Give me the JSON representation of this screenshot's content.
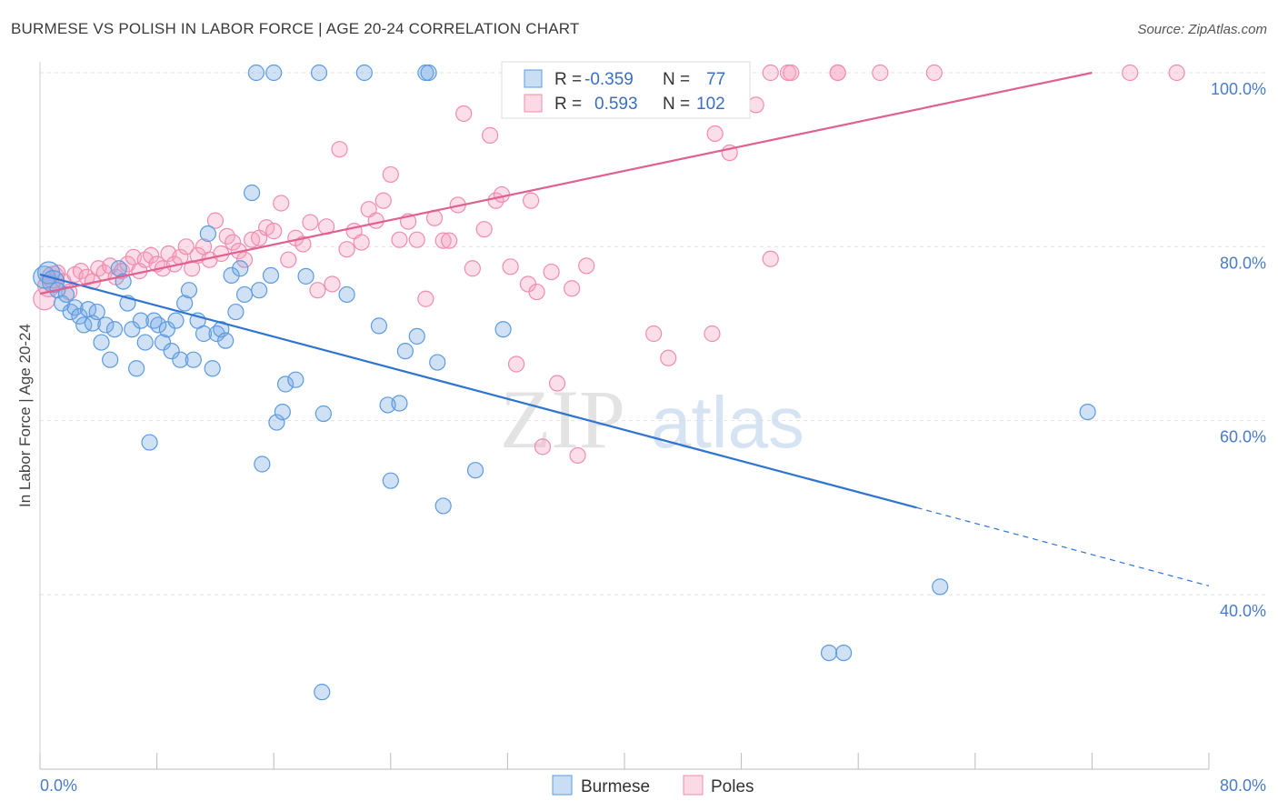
{
  "title": "BURMESE VS POLISH IN LABOR FORCE | AGE 20-24 CORRELATION CHART",
  "source": "Source: ZipAtlas.com",
  "watermark": {
    "zip": "ZIP",
    "atlas": "atlas"
  },
  "colors": {
    "burmese": "#5b9be0",
    "burmese_fill": "rgba(120,170,230,0.35)",
    "burmese_line": "#2f74d0",
    "poles": "#f08cb0",
    "poles_fill": "rgba(245,160,190,0.35)",
    "poles_line": "#e0608f",
    "axis_label": "#4a7cc9"
  },
  "legend": {
    "r_label": "R =",
    "n_label": "N =",
    "series": [
      {
        "r": "-0.359",
        "n": "77"
      },
      {
        "r": "0.593",
        "n": "102"
      }
    ]
  },
  "chart_data": {
    "type": "scatter",
    "xlabel": "",
    "ylabel": "In Labor Force | Age 20-24",
    "xlim": [
      0,
      0.8
    ],
    "ylim": [
      0.2,
      1.03
    ],
    "x_ticks": [
      "0.0%",
      "80.0%"
    ],
    "y_ticks": [
      {
        "value": 1.0,
        "label": "100.0%"
      },
      {
        "value": 0.8,
        "label": "80.0%"
      },
      {
        "value": 0.6,
        "label": "60.0%"
      },
      {
        "value": 0.4,
        "label": "40.0%"
      }
    ],
    "grid": true,
    "legend_position": "top-center",
    "series": [
      {
        "name": "Burmese",
        "trend": {
          "x0": 0.0,
          "y0": 0.768,
          "x1": 0.6,
          "y1": 0.5,
          "dash_to_x": 0.8,
          "dash_to_y": 0.41
        },
        "points": [
          [
            0.003,
            0.765
          ],
          [
            0.006,
            0.77
          ],
          [
            0.009,
            0.76
          ],
          [
            0.012,
            0.75
          ],
          [
            0.015,
            0.735
          ],
          [
            0.018,
            0.745
          ],
          [
            0.021,
            0.725
          ],
          [
            0.024,
            0.73
          ],
          [
            0.027,
            0.72
          ],
          [
            0.03,
            0.71
          ],
          [
            0.033,
            0.728
          ],
          [
            0.036,
            0.712
          ],
          [
            0.039,
            0.725
          ],
          [
            0.042,
            0.69
          ],
          [
            0.045,
            0.71
          ],
          [
            0.048,
            0.67
          ],
          [
            0.051,
            0.705
          ],
          [
            0.054,
            0.775
          ],
          [
            0.057,
            0.76
          ],
          [
            0.06,
            0.735
          ],
          [
            0.063,
            0.705
          ],
          [
            0.066,
            0.66
          ],
          [
            0.069,
            0.715
          ],
          [
            0.072,
            0.69
          ],
          [
            0.075,
            0.575
          ],
          [
            0.078,
            0.715
          ],
          [
            0.081,
            0.71
          ],
          [
            0.084,
            0.69
          ],
          [
            0.087,
            0.705
          ],
          [
            0.09,
            0.68
          ],
          [
            0.093,
            0.715
          ],
          [
            0.096,
            0.67
          ],
          [
            0.099,
            0.735
          ],
          [
            0.102,
            0.75
          ],
          [
            0.105,
            0.67
          ],
          [
            0.108,
            0.715
          ],
          [
            0.112,
            0.7
          ],
          [
            0.115,
            0.815
          ],
          [
            0.118,
            0.66
          ],
          [
            0.121,
            0.7
          ],
          [
            0.124,
            0.705
          ],
          [
            0.127,
            0.692
          ],
          [
            0.131,
            0.767
          ],
          [
            0.134,
            0.725
          ],
          [
            0.137,
            0.775
          ],
          [
            0.14,
            0.745
          ],
          [
            0.145,
            0.862
          ],
          [
            0.15,
            0.75
          ],
          [
            0.152,
            0.55
          ],
          [
            0.158,
            0.767
          ],
          [
            0.162,
            0.598
          ],
          [
            0.166,
            0.61
          ],
          [
            0.168,
            0.642
          ],
          [
            0.175,
            0.647
          ],
          [
            0.182,
            0.766
          ],
          [
            0.194,
            0.608
          ],
          [
            0.21,
            0.745
          ],
          [
            0.232,
            0.709
          ],
          [
            0.238,
            0.618
          ],
          [
            0.24,
            0.531
          ],
          [
            0.246,
            0.62
          ],
          [
            0.25,
            0.68
          ],
          [
            0.258,
            0.697
          ],
          [
            0.272,
            0.667
          ],
          [
            0.276,
            0.502
          ],
          [
            0.298,
            0.543
          ],
          [
            0.317,
            0.705
          ],
          [
            0.148,
            1.0
          ],
          [
            0.16,
            1.0
          ],
          [
            0.191,
            1.0
          ],
          [
            0.222,
            1.0
          ],
          [
            0.264,
            1.0
          ],
          [
            0.266,
            1.0
          ],
          [
            0.54,
            0.333
          ],
          [
            0.55,
            0.333
          ],
          [
            0.616,
            0.409
          ],
          [
            0.717,
            0.61
          ],
          [
            0.193,
            0.288
          ]
        ]
      },
      {
        "name": "Poles",
        "trend": {
          "x0": 0.0,
          "y0": 0.746,
          "x1": 0.72,
          "y1": 1.0
        },
        "points": [
          [
            0.003,
            0.74
          ],
          [
            0.006,
            0.755
          ],
          [
            0.009,
            0.765
          ],
          [
            0.012,
            0.77
          ],
          [
            0.016,
            0.76
          ],
          [
            0.02,
            0.748
          ],
          [
            0.024,
            0.768
          ],
          [
            0.028,
            0.772
          ],
          [
            0.032,
            0.765
          ],
          [
            0.036,
            0.76
          ],
          [
            0.04,
            0.775
          ],
          [
            0.044,
            0.77
          ],
          [
            0.048,
            0.778
          ],
          [
            0.052,
            0.765
          ],
          [
            0.056,
            0.772
          ],
          [
            0.06,
            0.78
          ],
          [
            0.064,
            0.788
          ],
          [
            0.068,
            0.772
          ],
          [
            0.072,
            0.785
          ],
          [
            0.076,
            0.79
          ],
          [
            0.08,
            0.78
          ],
          [
            0.084,
            0.775
          ],
          [
            0.088,
            0.792
          ],
          [
            0.092,
            0.78
          ],
          [
            0.096,
            0.788
          ],
          [
            0.1,
            0.8
          ],
          [
            0.104,
            0.775
          ],
          [
            0.108,
            0.79
          ],
          [
            0.112,
            0.8
          ],
          [
            0.116,
            0.785
          ],
          [
            0.12,
            0.83
          ],
          [
            0.124,
            0.792
          ],
          [
            0.128,
            0.812
          ],
          [
            0.132,
            0.805
          ],
          [
            0.136,
            0.795
          ],
          [
            0.14,
            0.785
          ],
          [
            0.145,
            0.808
          ],
          [
            0.15,
            0.81
          ],
          [
            0.155,
            0.822
          ],
          [
            0.16,
            0.818
          ],
          [
            0.165,
            0.85
          ],
          [
            0.17,
            0.785
          ],
          [
            0.175,
            0.81
          ],
          [
            0.18,
            0.803
          ],
          [
            0.185,
            0.828
          ],
          [
            0.19,
            0.75
          ],
          [
            0.196,
            0.823
          ],
          [
            0.2,
            0.757
          ],
          [
            0.205,
            0.912
          ],
          [
            0.21,
            0.797
          ],
          [
            0.215,
            0.818
          ],
          [
            0.22,
            0.805
          ],
          [
            0.225,
            0.843
          ],
          [
            0.23,
            0.83
          ],
          [
            0.235,
            0.853
          ],
          [
            0.24,
            0.883
          ],
          [
            0.246,
            0.808
          ],
          [
            0.252,
            0.829
          ],
          [
            0.258,
            0.808
          ],
          [
            0.264,
            0.74
          ],
          [
            0.27,
            0.833
          ],
          [
            0.276,
            0.807
          ],
          [
            0.28,
            0.807
          ],
          [
            0.286,
            0.848
          ],
          [
            0.29,
            0.953
          ],
          [
            0.296,
            0.775
          ],
          [
            0.304,
            0.82
          ],
          [
            0.308,
            0.928
          ],
          [
            0.312,
            0.853
          ],
          [
            0.316,
            0.86
          ],
          [
            0.322,
            0.777
          ],
          [
            0.326,
            0.665
          ],
          [
            0.334,
            0.757
          ],
          [
            0.336,
            0.853
          ],
          [
            0.34,
            0.748
          ],
          [
            0.344,
            0.57
          ],
          [
            0.35,
            0.771
          ],
          [
            0.354,
            0.643
          ],
          [
            0.364,
            0.752
          ],
          [
            0.368,
            0.56
          ],
          [
            0.374,
            0.778
          ],
          [
            0.376,
            1.0
          ],
          [
            0.38,
            1.0
          ],
          [
            0.426,
            1.0
          ],
          [
            0.446,
            0.985
          ],
          [
            0.46,
            0.7
          ],
          [
            0.462,
            0.93
          ],
          [
            0.472,
            0.908
          ],
          [
            0.476,
            1.0
          ],
          [
            0.49,
            0.963
          ],
          [
            0.5,
            0.786
          ],
          [
            0.5,
            1.0
          ],
          [
            0.512,
            1.0
          ],
          [
            0.514,
            1.0
          ],
          [
            0.546,
            1.0
          ],
          [
            0.546,
            1.0
          ],
          [
            0.575,
            1.0
          ],
          [
            0.612,
            1.0
          ],
          [
            0.746,
            1.0
          ],
          [
            0.778,
            1.0
          ],
          [
            0.42,
            0.7
          ],
          [
            0.43,
            0.672
          ]
        ]
      }
    ]
  },
  "bottom_legend": [
    "Burmese",
    "Poles"
  ]
}
